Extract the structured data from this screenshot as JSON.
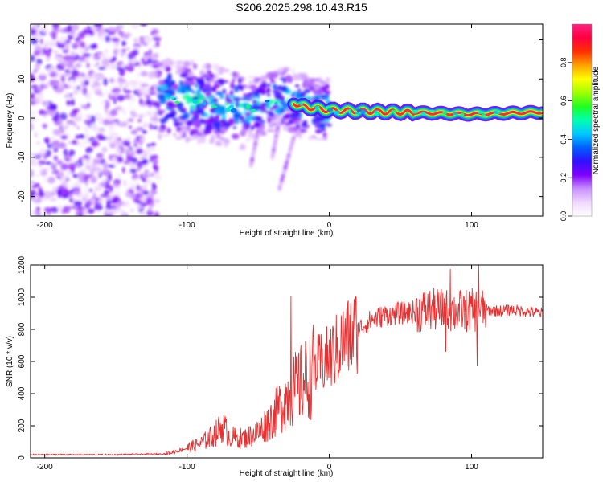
{
  "figure_title": "S206.2025.298.10.43.R15",
  "chart_data": [
    {
      "type": "heatmap",
      "name": "spectrogram",
      "xlabel": "Height of straight line (km)",
      "ylabel": "Frequency (Hz)",
      "xlim": [
        -210,
        150
      ],
      "ylim": [
        -25,
        24
      ],
      "xticks": [
        -200,
        -100,
        0,
        100
      ],
      "yticks": [
        -20,
        -10,
        0,
        10,
        20
      ],
      "colorbar": {
        "label": "Normalized spectral amplitude",
        "range": [
          0,
          1
        ],
        "ticks": [
          0.0,
          0.2,
          0.4,
          0.6,
          0.8
        ],
        "tick_labels": [
          "0.0",
          "0.2",
          "0.4",
          "0.6",
          "0.8"
        ],
        "colors": [
          "#ffffff",
          "#f0d8ff",
          "#c890ff",
          "#8000ff",
          "#3010ff",
          "#0060ff",
          "#00c8ff",
          "#00ffb0",
          "#20ff20",
          "#a0ff00",
          "#ffff00",
          "#ffa000",
          "#ff3000",
          "#ff0040",
          "#ff2080"
        ]
      },
      "ridge": {
        "description": "dominant frequency band",
        "points": [
          {
            "x": -115,
            "y": 5
          },
          {
            "x": -90,
            "y": 4
          },
          {
            "x": -60,
            "y": 2
          },
          {
            "x": -30,
            "y": 5
          },
          {
            "x": -20,
            "y": 3
          },
          {
            "x": 0,
            "y": 2
          },
          {
            "x": 50,
            "y": 1.5
          },
          {
            "x": 100,
            "y": 1
          },
          {
            "x": 150,
            "y": 1.5
          }
        ]
      }
    },
    {
      "type": "line",
      "name": "snr",
      "xlabel": "Height of straight line (km)",
      "ylabel": "SNR (10 * v/v)",
      "xlim": [
        -210,
        150
      ],
      "ylim": [
        0,
        1200
      ],
      "xticks": [
        -200,
        -100,
        0,
        100
      ],
      "yticks": [
        0,
        200,
        400,
        600,
        800,
        1000,
        1200
      ],
      "color": "#e83030",
      "series": [
        {
          "name": "SNR",
          "points": [
            {
              "x": -210,
              "y": 20
            },
            {
              "x": -150,
              "y": 20
            },
            {
              "x": -115,
              "y": 25
            },
            {
              "x": -100,
              "y": 60
            },
            {
              "x": -90,
              "y": 90
            },
            {
              "x": -80,
              "y": 150
            },
            {
              "x": -75,
              "y": 200
            },
            {
              "x": -70,
              "y": 130
            },
            {
              "x": -60,
              "y": 120
            },
            {
              "x": -50,
              "y": 160
            },
            {
              "x": -40,
              "y": 250
            },
            {
              "x": -30,
              "y": 380
            },
            {
              "x": -25,
              "y": 420
            },
            {
              "x": -20,
              "y": 460
            },
            {
              "x": -15,
              "y": 500
            },
            {
              "x": -10,
              "y": 560
            },
            {
              "x": 0,
              "y": 620
            },
            {
              "x": 10,
              "y": 720
            },
            {
              "x": 20,
              "y": 800
            },
            {
              "x": 30,
              "y": 860
            },
            {
              "x": 40,
              "y": 890
            },
            {
              "x": 50,
              "y": 900
            },
            {
              "x": 60,
              "y": 910
            },
            {
              "x": 70,
              "y": 920
            },
            {
              "x": 80,
              "y": 920
            },
            {
              "x": 90,
              "y": 910
            },
            {
              "x": 100,
              "y": 920
            },
            {
              "x": 110,
              "y": 920
            },
            {
              "x": 120,
              "y": 915
            },
            {
              "x": 130,
              "y": 920
            },
            {
              "x": 140,
              "y": 910
            },
            {
              "x": 150,
              "y": 900
            }
          ]
        }
      ],
      "spikes": [
        {
          "x": -27,
          "y": 1010
        },
        {
          "x": 85,
          "y": 1175
        },
        {
          "x": 105,
          "y": 1200
        },
        {
          "x": 104,
          "y": 570
        },
        {
          "x": 82,
          "y": 660
        }
      ]
    }
  ]
}
